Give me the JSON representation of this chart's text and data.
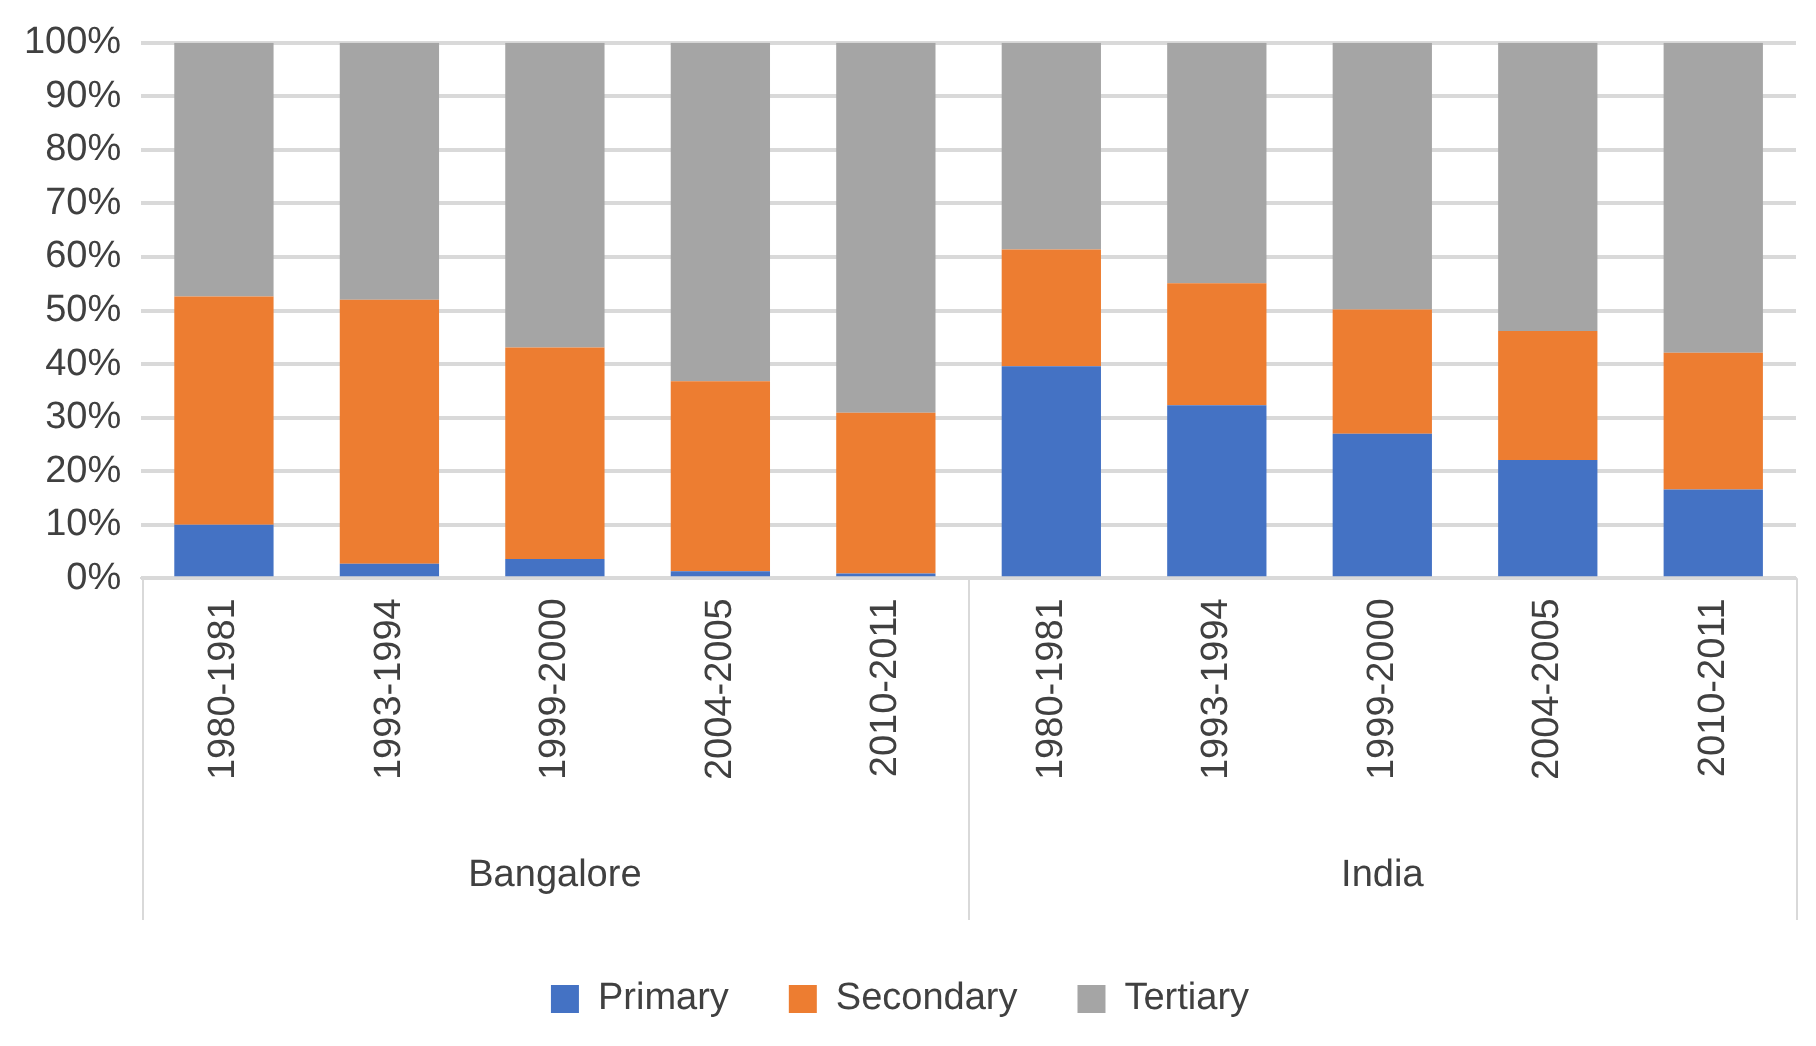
{
  "chart_data": {
    "type": "bar",
    "stacked": true,
    "categories": [
      "1980-1981",
      "1993-1994",
      "1999-2000",
      "2004-2005",
      "2010-2011",
      "1980-1981",
      "1993-1994",
      "1999-2000",
      "2004-2005",
      "2010-2011"
    ],
    "series": [
      {
        "name": "Primary",
        "color": "#4472c4",
        "values": [
          10.0,
          2.7,
          3.6,
          1.3,
          0.9,
          39.6,
          32.3,
          27.0,
          22.1,
          16.6
        ]
      },
      {
        "name": "Secondary",
        "color": "#ed7d31",
        "values": [
          42.6,
          49.3,
          39.5,
          35.5,
          30.0,
          21.8,
          22.8,
          23.2,
          24.1,
          25.5
        ]
      },
      {
        "name": "Tertiary",
        "color": "#a5a5a5",
        "values": [
          47.4,
          48.0,
          56.9,
          63.2,
          69.1,
          38.6,
          44.9,
          49.8,
          53.8,
          57.9
        ]
      }
    ],
    "ylim": [
      0,
      100
    ],
    "yticks": [
      {
        "value": 0,
        "label": "0%"
      },
      {
        "value": 10,
        "label": "10%"
      },
      {
        "value": 20,
        "label": "20%"
      },
      {
        "value": 30,
        "label": "30%"
      },
      {
        "value": 40,
        "label": "40%"
      },
      {
        "value": 50,
        "label": "50%"
      },
      {
        "value": 60,
        "label": "60%"
      },
      {
        "value": 70,
        "label": "70%"
      },
      {
        "value": 80,
        "label": "80%"
      },
      {
        "value": 90,
        "label": "90%"
      },
      {
        "value": 100,
        "label": "100%"
      }
    ],
    "grid": "y",
    "legend": "bottom",
    "annotations": [
      "Bangalore",
      "India"
    ]
  }
}
